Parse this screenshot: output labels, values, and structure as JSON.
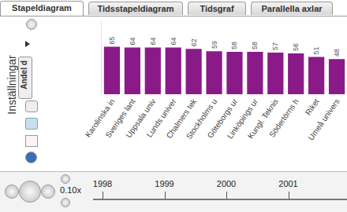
{
  "tabs": [
    "Stapeldiagram",
    "Tidsstapeldiagram",
    "Tidsgraf",
    "Parallella axlar"
  ],
  "active_tab": 0,
  "settings": {
    "title": "Inställningar",
    "indicator": "Andel d"
  },
  "chart_data": {
    "type": "bar",
    "categories": [
      "Karolinska in",
      "Sveriges lant",
      "Uppsala univ",
      "Lunds univer",
      "Chalmers tek",
      "Stockholms u",
      "Göteborgs ur",
      "Linköpings ur",
      "Kungl. Teknis",
      "Södertörns h",
      "Riket",
      "Umeå univers"
    ],
    "values": [
      65,
      64,
      64,
      64,
      62,
      59,
      58,
      58,
      57,
      56,
      51,
      48
    ],
    "color": "#8b1a89",
    "ylim": [
      0,
      100
    ],
    "yticks": [],
    "data_labels": true,
    "tick_labels": "x"
  },
  "timeline": {
    "speed": "0.10x",
    "years": [
      1998,
      1999,
      2000,
      2001
    ]
  }
}
